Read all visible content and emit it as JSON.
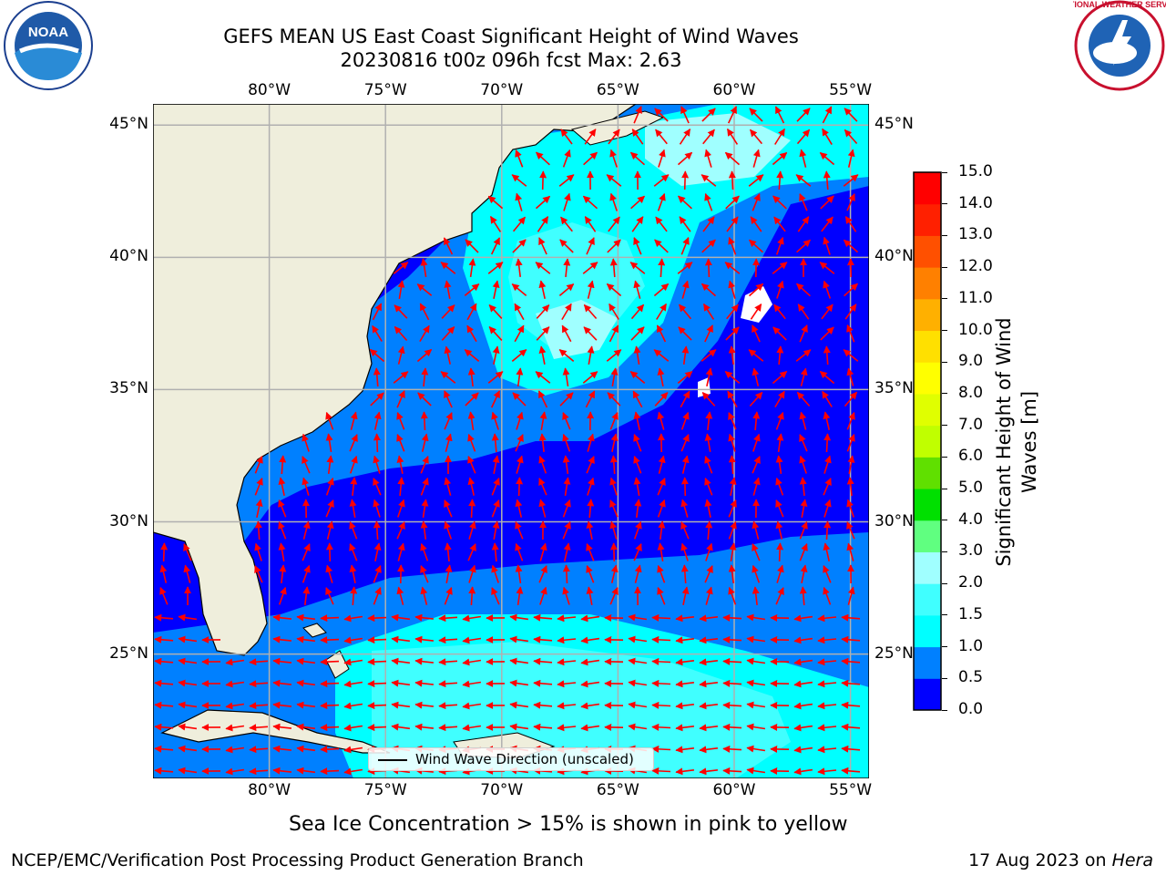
{
  "header": {
    "title_line1": "GEFS MEAN US East Coast Significant Height of Wind Waves",
    "title_line2": "20230816 t00z 096h fcst   Max: 2.63"
  },
  "logos": {
    "left": {
      "text": "NOAA",
      "icon": "noaa-logo-icon"
    },
    "right": {
      "text": "NATIONAL WEATHER SERVICE",
      "icon": "nws-logo-icon"
    }
  },
  "map": {
    "lon_ticks": [
      "80°W",
      "75°W",
      "70°W",
      "65°W",
      "60°W",
      "55°W"
    ],
    "lat_ticks": [
      "45°N",
      "40°N",
      "35°N",
      "30°N",
      "25°N"
    ],
    "lon_values": [
      -80,
      -75,
      -70,
      -65,
      -60,
      -55
    ],
    "lat_values": [
      45,
      40,
      35,
      30,
      25
    ],
    "extent": {
      "lon": [
        -85,
        -54.2
      ],
      "lat": [
        20.3,
        45.8
      ]
    },
    "colors": {
      "land": "#efeedc",
      "coast": "#000000",
      "arrow": "#ff0000",
      "grid": "#b0b0b0"
    }
  },
  "legend": {
    "label": "Wind Wave Direction (unscaled)"
  },
  "colorbar": {
    "label": "Significant Height of Wind Waves [m]",
    "label_line1": "Significant Height of Wind",
    "label_line2": "Waves [m]",
    "ticks": [
      "0.0",
      "0.5",
      "1.0",
      "1.5",
      "2.0",
      "3.0",
      "4.0",
      "5.0",
      "6.0",
      "7.0",
      "8.0",
      "9.0",
      "10.0",
      "11.0",
      "12.0",
      "13.0",
      "14.0",
      "15.0"
    ],
    "colors": [
      "#0000ff",
      "#0080ff",
      "#00ffff",
      "#40ffff",
      "#a0ffff",
      "#60ff80",
      "#00e000",
      "#60e000",
      "#c0ff00",
      "#e0ff00",
      "#ffff00",
      "#ffe000",
      "#ffb000",
      "#ff8000",
      "#ff5000",
      "#ff2000",
      "#ff0000"
    ]
  },
  "chart_data": {
    "type": "heatmap",
    "variable": "Significant Height of Wind Waves",
    "units": "m",
    "max": 2.63,
    "levels": [
      0.0,
      0.5,
      1.0,
      1.5,
      2.0,
      3.0,
      4.0,
      5.0,
      6.0,
      7.0,
      8.0,
      9.0,
      10.0,
      11.0,
      12.0,
      13.0,
      14.0,
      15.0
    ]
  },
  "notes": {
    "sea_ice": "Sea Ice Concentration > 15% is shown in pink to yellow"
  },
  "footer": {
    "left": "NCEP/EMC/Verification Post Processing Product Generation Branch",
    "date": "17 Aug 2023 on ",
    "machine": "Hera"
  }
}
